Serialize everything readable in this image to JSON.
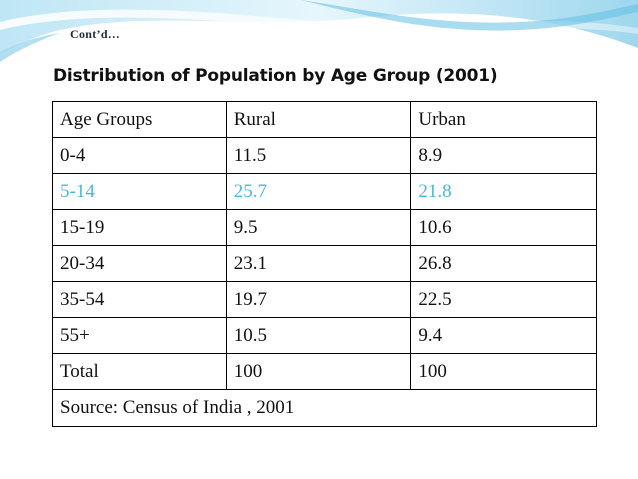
{
  "slide": {
    "subtitle": "Cont’d…",
    "title": "Distribution of Population by Age Group (2001)"
  },
  "table": {
    "headers": [
      "Age Groups",
      "Rural",
      "Urban"
    ],
    "rows": [
      {
        "age_group": "0-4",
        "rural": "11.5",
        "urban": "8.9"
      },
      {
        "age_group": "5-14",
        "rural": "25.7",
        "urban": "21.8"
      },
      {
        "age_group": "15-19",
        "rural": "9.5",
        "urban": "10.6"
      },
      {
        "age_group": "20-34",
        "rural": "23.1",
        "urban": "26.8"
      },
      {
        "age_group": "35-54",
        "rural": "19.7",
        "urban": "22.5"
      },
      {
        "age_group": "55+",
        "rural": "10.5",
        "urban": "9.4"
      },
      {
        "age_group": "Total",
        "rural": "100",
        "urban": "100"
      }
    ],
    "source": "Source: Census of India , 2001"
  },
  "colors": {
    "highlight_row": "#4db6df",
    "wave_light": "#dff3fb",
    "wave_mid": "#a9dcef",
    "wave_accent": "#62bfe3"
  }
}
